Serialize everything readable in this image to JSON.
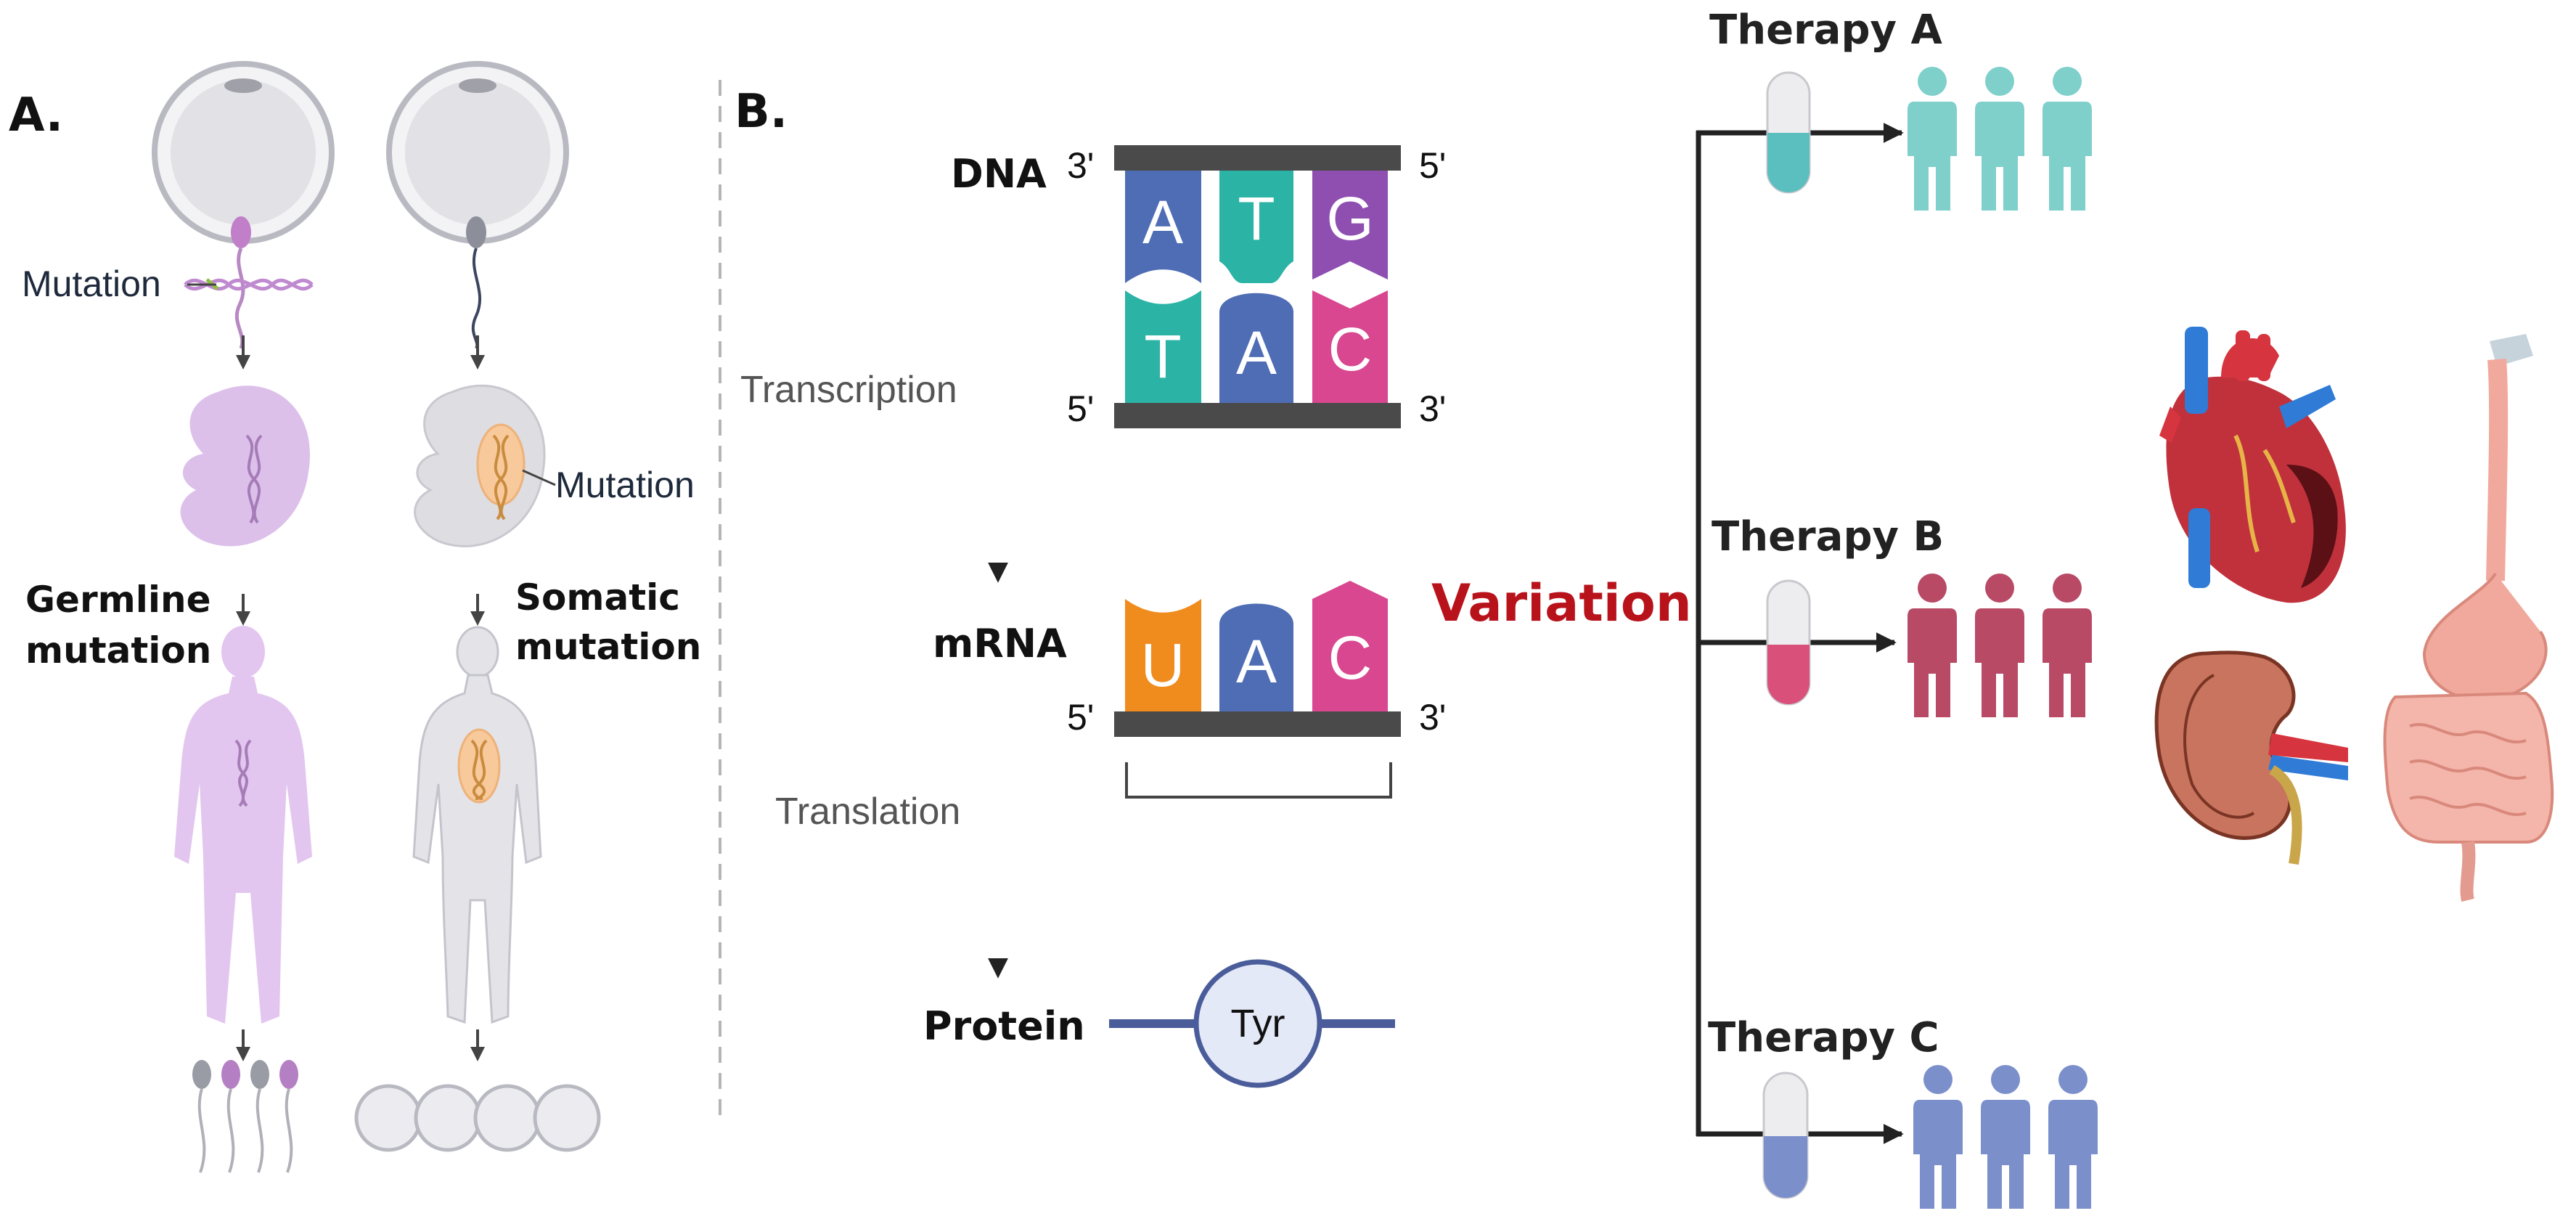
{
  "panel_a": {
    "label": "A.",
    "mutation_label_left": "Mutation",
    "mutation_label_right": "Mutation",
    "germline_line1": "Germline",
    "germline_line2": "mutation",
    "somatic_line1": "Somatic",
    "somatic_line2": "mutation"
  },
  "panel_b": {
    "label": "B.",
    "dna_label": "DNA",
    "mrna_label": "mRNA",
    "protein_label": "Protein",
    "transcription_label": "Transcription",
    "translation_label": "Translation",
    "dna_top_bases": [
      "A",
      "T",
      "G"
    ],
    "dna_bottom_bases": [
      "T",
      "A",
      "C"
    ],
    "mrna_bases": [
      "U",
      "A",
      "C"
    ],
    "end_3prime": "3'",
    "end_5prime": "5'",
    "amino_acid": "Tyr",
    "variation_label": "Variation",
    "therapies": [
      {
        "label": "Therapy A",
        "color": "#7fcfcb"
      },
      {
        "label": "Therapy B",
        "color": "#b84a66"
      },
      {
        "label": "Therapy C",
        "color": "#7b8fcb"
      }
    ]
  },
  "colors": {
    "base_A": "#4f6db5",
    "base_T": "#2bb3a5",
    "base_G": "#8e4fb0",
    "base_C": "#d8478f",
    "base_U": "#f08c1e",
    "variation": "#b8121b",
    "germline": "#d9b6e6",
    "somatic": "#dddde2"
  }
}
